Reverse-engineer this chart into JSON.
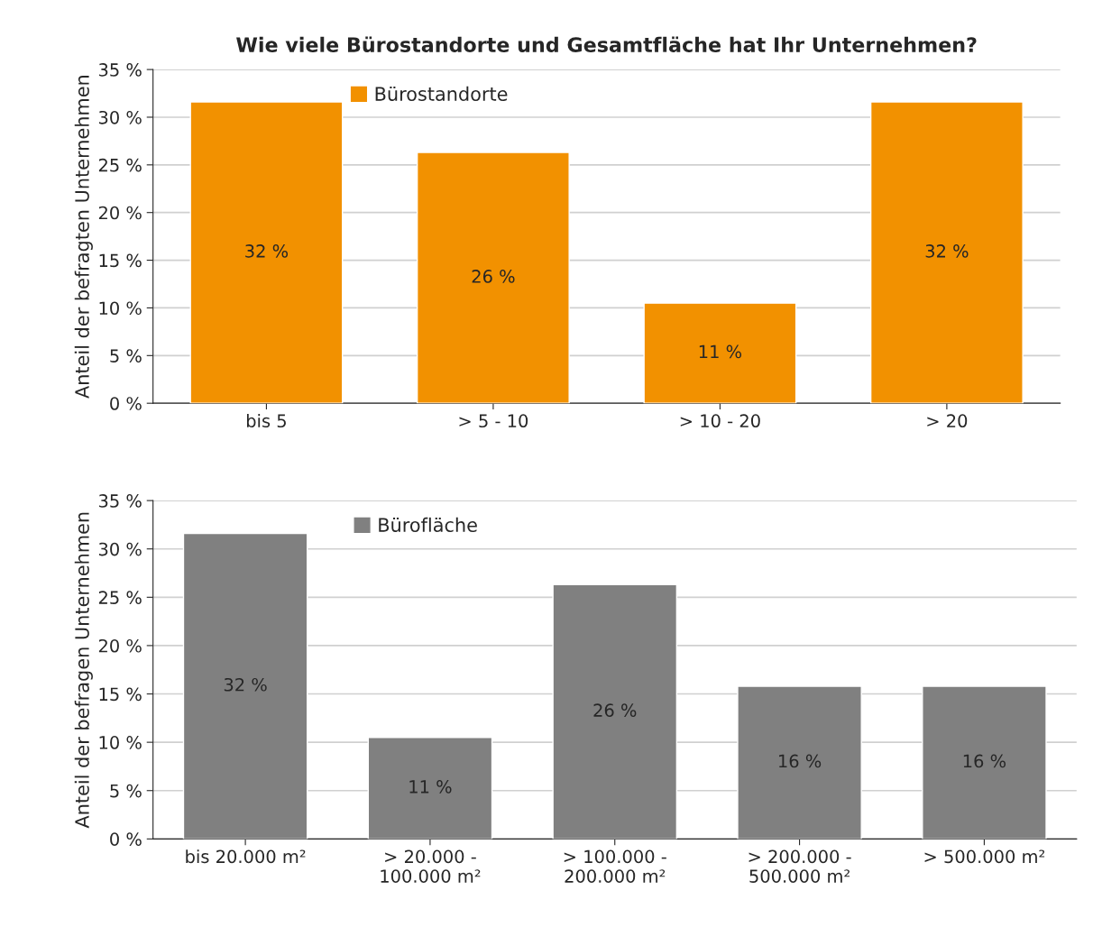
{
  "chart_data": [
    {
      "type": "bar",
      "title": "Wie viele Bürostandorte und Gesamtfläche hat Ihr Unternehmen?",
      "ylabel": "Anteil der befragten Unternehmen",
      "categories": [
        "bis 5",
        "> 5 - 10",
        "> 10 - 20",
        "> 20"
      ],
      "series": [
        {
          "name": "Bürostandorte",
          "color": "#f29100",
          "values": [
            31.6,
            26.3,
            10.5,
            31.6
          ],
          "value_labels": [
            "32 %",
            "26 %",
            "11 %",
            "32 %"
          ]
        }
      ],
      "ylim": [
        0,
        35
      ],
      "yticks": [
        {
          "value": 0,
          "label": "0 %"
        },
        {
          "value": 5,
          "label": "5 %"
        },
        {
          "value": 10,
          "label": "10 %"
        },
        {
          "value": 15,
          "label": "15 %"
        },
        {
          "value": 20,
          "label": "20 %"
        },
        {
          "value": 25,
          "label": "25 %"
        },
        {
          "value": 30,
          "label": "30 %"
        },
        {
          "value": 35,
          "label": "35 %"
        }
      ],
      "grid": "y",
      "legend": "top left"
    },
    {
      "type": "bar",
      "ylabel": "Anteil der befragen Unternehmen",
      "categories": [
        "bis 20.000 m²",
        "> 20.000 -\n100.000 m²",
        "> 100.000 -\n200.000 m²",
        "> 200.000 -\n500.000 m²",
        "> 500.000 m²"
      ],
      "series": [
        {
          "name": "Bürofläche",
          "color": "#808080",
          "values": [
            31.6,
            10.5,
            26.3,
            15.8,
            15.8
          ],
          "value_labels": [
            "32 %",
            "11 %",
            "26 %",
            "16 %",
            "16 %"
          ]
        }
      ],
      "ylim": [
        0,
        35
      ],
      "yticks": [
        {
          "value": 0,
          "label": "0 %"
        },
        {
          "value": 5,
          "label": "5 %"
        },
        {
          "value": 10,
          "label": "10 %"
        },
        {
          "value": 15,
          "label": "15 %"
        },
        {
          "value": 20,
          "label": "20 %"
        },
        {
          "value": 25,
          "label": "25 %"
        },
        {
          "value": 30,
          "label": "30 %"
        },
        {
          "value": 35,
          "label": "35 %"
        }
      ],
      "grid": "y",
      "legend": "top left"
    }
  ]
}
